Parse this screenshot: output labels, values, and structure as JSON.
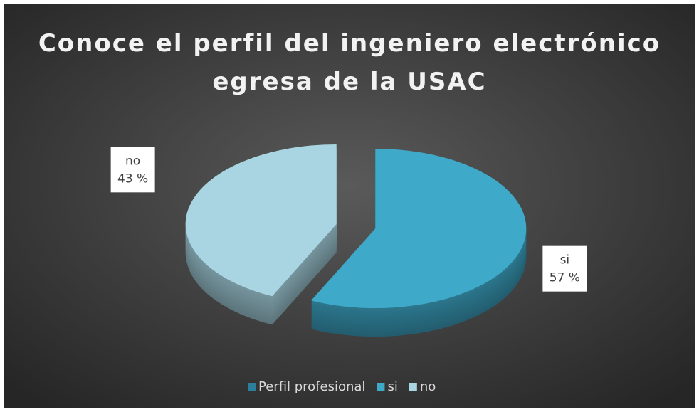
{
  "chart_data": {
    "type": "pie3d",
    "title": "Conoce el perfil del ingeniero electrónico egresa de la USAC",
    "categories": [
      "Perfil profesional",
      "si",
      "no"
    ],
    "values": [
      null,
      57,
      43
    ],
    "value_labels": [
      null,
      "57 %",
      "43 %"
    ],
    "colors": [
      "#2b7f9c",
      "#3fa9c9",
      "#a9d5e2"
    ],
    "legend": "bottom"
  }
}
